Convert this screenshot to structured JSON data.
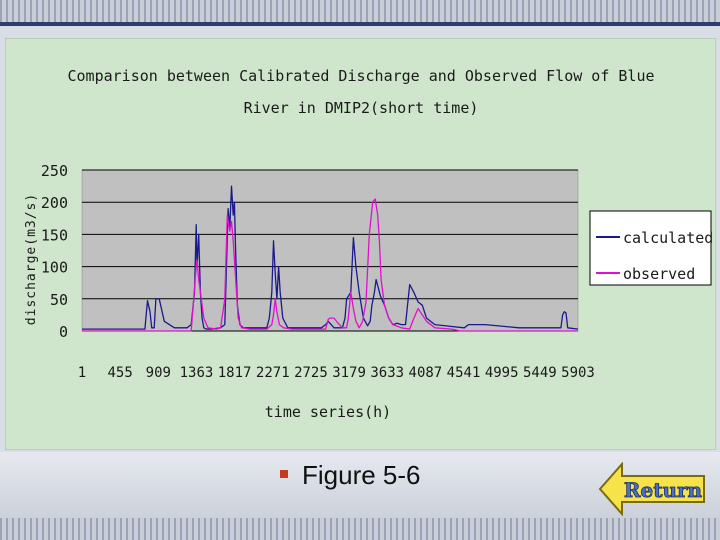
{
  "chart_data": {
    "type": "line",
    "title_line1": "Comparison between Calibrated Discharge and Observed Flow of Blue",
    "title_line2": "River in DMIP2(short time)",
    "xlabel": "time series(h)",
    "ylabel": "discharge(m3/s)",
    "ylim": [
      0,
      250
    ],
    "yticks": [
      250,
      200,
      150,
      100,
      50,
      0
    ],
    "xlim": [
      1,
      5903
    ],
    "xticks": [
      "1",
      "455",
      "909",
      "1363",
      "1817",
      "2271",
      "2725",
      "3179",
      "3633",
      "4087",
      "4541",
      "4995",
      "5449",
      "5903"
    ],
    "legend_position": "right",
    "grid": true,
    "series": [
      {
        "name": "calculated",
        "color": "#1a1a8c",
        "x": [
          1,
          150,
          400,
          700,
          750,
          780,
          810,
          830,
          860,
          880,
          920,
          980,
          1100,
          1250,
          1300,
          1340,
          1360,
          1370,
          1390,
          1410,
          1430,
          1450,
          1480,
          1540,
          1650,
          1700,
          1740,
          1760,
          1780,
          1800,
          1815,
          1830,
          1850,
          1880,
          1920,
          2000,
          2100,
          2200,
          2230,
          2260,
          2280,
          2300,
          2320,
          2340,
          2360,
          2390,
          2450,
          2600,
          2750,
          2850,
          2900,
          2930,
          3000,
          3100,
          3130,
          3150,
          3200,
          3230,
          3260,
          3300,
          3350,
          3400,
          3430,
          3450,
          3480,
          3500,
          3550,
          3600,
          3650,
          3700,
          3750,
          3800,
          3850,
          3900,
          3950,
          4000,
          4050,
          4100,
          4200,
          4400,
          4550,
          4600,
          4800,
          5200,
          5400,
          5600,
          5700,
          5720,
          5740,
          5760,
          5780,
          5903
        ],
        "values": [
          3,
          3,
          3,
          3,
          3,
          47,
          30,
          5,
          5,
          50,
          50,
          15,
          5,
          5,
          10,
          60,
          165,
          100,
          150,
          60,
          20,
          5,
          3,
          3,
          5,
          10,
          190,
          160,
          225,
          180,
          200,
          120,
          40,
          10,
          5,
          5,
          5,
          5,
          20,
          60,
          140,
          90,
          50,
          100,
          60,
          20,
          5,
          5,
          5,
          5,
          10,
          15,
          5,
          5,
          20,
          50,
          60,
          145,
          100,
          60,
          20,
          8,
          15,
          40,
          60,
          80,
          55,
          40,
          20,
          10,
          12,
          10,
          10,
          72,
          60,
          45,
          40,
          20,
          10,
          7,
          5,
          10,
          10,
          5,
          5,
          5,
          5,
          25,
          30,
          28,
          5,
          3
        ]
      },
      {
        "name": "observed",
        "color": "#e010d0",
        "x": [
          1,
          1150,
          1300,
          1330,
          1360,
          1370,
          1390,
          1420,
          1450,
          1500,
          1600,
          1650,
          1700,
          1730,
          1760,
          1780,
          1800,
          1820,
          1840,
          1860,
          1900,
          2000,
          2150,
          2200,
          2260,
          2280,
          2300,
          2320,
          2350,
          2400,
          2500,
          2650,
          2800,
          2900,
          2930,
          2950,
          3000,
          3050,
          3100,
          3150,
          3170,
          3200,
          3230,
          3260,
          3300,
          3340,
          3380,
          3420,
          3460,
          3490,
          3520,
          3540,
          3560,
          3600,
          3650,
          3700,
          3800,
          3900,
          3950,
          4000,
          4100,
          4200,
          4400,
          4500,
          5903
        ],
        "values": [
          0,
          0,
          0,
          50,
          100,
          110,
          80,
          50,
          20,
          5,
          3,
          5,
          50,
          180,
          155,
          170,
          140,
          100,
          60,
          20,
          5,
          3,
          3,
          3,
          10,
          25,
          50,
          30,
          10,
          5,
          3,
          3,
          3,
          3,
          18,
          20,
          20,
          12,
          5,
          5,
          20,
          60,
          35,
          15,
          5,
          15,
          45,
          150,
          200,
          205,
          180,
          140,
          80,
          40,
          20,
          10,
          5,
          3,
          20,
          35,
          15,
          5,
          3,
          0,
          0
        ]
      }
    ]
  },
  "caption": {
    "text": "Figure 5-6",
    "bullet_color": "#c23b22"
  },
  "return_button": {
    "label": "Return",
    "icon": "arrow-left-icon"
  }
}
